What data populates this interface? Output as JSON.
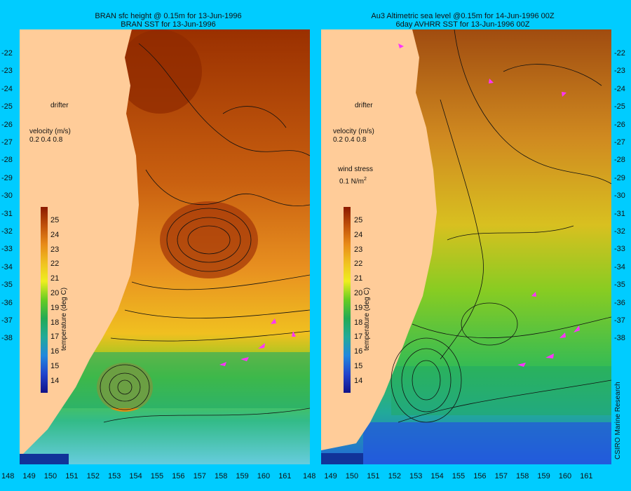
{
  "colors": {
    "background": "#00ccff",
    "land": "#ffcc99",
    "velocity_arrow": "#ff33ff"
  },
  "left_panel": {
    "title_line1": "BRAN sfc height @ 0.15m for 13-Jun-1996",
    "title_line2": "BRAN SST for 13-Jun-1996",
    "legend": {
      "drifter": "drifter",
      "velocity_title": "velocity (m/s)",
      "velocity_values": "0.2 0.4 0.8"
    },
    "colorbar_label": "temperature (deg C)"
  },
  "right_panel": {
    "title_line1": "Au3 Altimetric sea level  @0.15m for 14-Jun-1996 00Z",
    "title_line2": "6day AVHRR SST for 13-Jun-1996 00Z",
    "legend": {
      "drifter": "drifter",
      "velocity_title": "velocity (m/s)",
      "velocity_values": "0.2 0.4 0.8",
      "wind_title": "wind stress",
      "wind_value": "0.1 N/m",
      "wind_exp": "2"
    },
    "colorbar_label": "temperature (deg C)",
    "credit": "CSIRO Marine Research"
  },
  "colorbar": {
    "ticks": [
      "25",
      "24",
      "23",
      "22",
      "21",
      "20",
      "19",
      "18",
      "17",
      "16",
      "15",
      "14"
    ]
  },
  "y_axis": {
    "ticks": [
      "-22",
      "-23",
      "-24",
      "-25",
      "-26",
      "-27",
      "-28",
      "-29",
      "-30",
      "-31",
      "-32",
      "-33",
      "-34",
      "-35",
      "-36",
      "-37",
      "-38"
    ]
  },
  "x_axis": {
    "ticks": [
      "148",
      "149",
      "150",
      "151",
      "152",
      "153",
      "154",
      "155",
      "156",
      "157",
      "158",
      "159",
      "160",
      "161"
    ]
  }
}
